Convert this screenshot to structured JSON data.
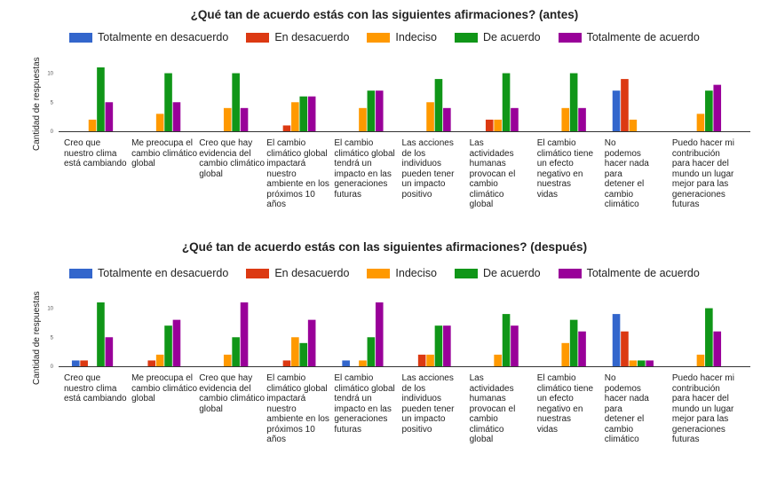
{
  "chart_data": [
    {
      "type": "bar",
      "title": "¿Qué tan de acuerdo estás con las siguientes afirmaciones? (antes)",
      "ylabel": "Cantidad de respuestas",
      "xlabel": "",
      "ylim": [
        0,
        11
      ],
      "yticks": [
        "0",
        "5",
        "10"
      ],
      "legend_position": "top",
      "categories": [
        [
          "Creo que",
          "nuestro clima",
          "está cambiando"
        ],
        [
          "Me preocupa el",
          "cambio climático",
          "global"
        ],
        [
          "Creo que hay",
          "evidencia del",
          "cambio climático",
          "global"
        ],
        [
          "El cambio",
          "climático global",
          "impactará",
          "nuestro",
          "ambiente en los",
          "próximos 10",
          "años"
        ],
        [
          "El cambio",
          "climático global",
          "tendrá un",
          "impacto en las",
          "generaciones",
          "futuras"
        ],
        [
          "Las acciones",
          "de los",
          "individuos",
          "pueden tener",
          "un impacto",
          "positivo"
        ],
        [
          "Las",
          "actividades",
          "humanas",
          "provocan el",
          "cambio",
          "climático",
          "global"
        ],
        [
          "El cambio",
          "climático tiene",
          "un efecto",
          "negativo en",
          "nuestras",
          "vidas"
        ],
        [
          "No",
          "podemos",
          "hacer nada",
          "para",
          "detener el",
          "cambio",
          "climático"
        ],
        [
          "Puedo hacer mi",
          "contribución",
          "para hacer del",
          "mundo un lugar",
          "mejor para las",
          "generaciones",
          "futuras"
        ]
      ],
      "series": [
        {
          "name": "Totalmente en desacuerdo",
          "color": "#3366cc",
          "values": [
            0,
            0,
            0,
            0,
            0,
            0,
            0,
            0,
            7,
            0
          ]
        },
        {
          "name": "En desacuerdo",
          "color": "#dc3912",
          "values": [
            0,
            0,
            0,
            1,
            0,
            0,
            2,
            0,
            9,
            0
          ]
        },
        {
          "name": "Indeciso",
          "color": "#ff9900",
          "values": [
            2,
            3,
            4,
            5,
            4,
            5,
            2,
            4,
            2,
            3
          ]
        },
        {
          "name": "De acuerdo",
          "color": "#109618",
          "values": [
            11,
            10,
            10,
            6,
            7,
            9,
            10,
            10,
            0,
            7
          ]
        },
        {
          "name": "Totalmente de acuerdo",
          "color": "#990099",
          "values": [
            5,
            5,
            4,
            6,
            7,
            4,
            4,
            4,
            0,
            8
          ]
        }
      ]
    },
    {
      "type": "bar",
      "title": "¿Qué tan de acuerdo estás con las siguientes afirmaciones? (después)",
      "ylabel": "Cantidad de respuestas",
      "xlabel": "",
      "ylim": [
        0,
        11
      ],
      "yticks": [
        "0",
        "5",
        "10"
      ],
      "legend_position": "top",
      "categories": [
        [
          "Creo que",
          "nuestro clima",
          "está cambiando"
        ],
        [
          "Me preocupa el",
          "cambio climático",
          "global"
        ],
        [
          "Creo que hay",
          "evidencia del",
          "cambio climático",
          "global"
        ],
        [
          "El cambio",
          "climático global",
          "impactará",
          "nuestro",
          "ambiente en los",
          "próximos 10",
          "años"
        ],
        [
          "El cambio",
          "climático global",
          "tendrá un",
          "impacto en las",
          "generaciones",
          "futuras"
        ],
        [
          "Las acciones",
          "de los",
          "individuos",
          "pueden tener",
          "un impacto",
          "positivo"
        ],
        [
          "Las",
          "actividades",
          "humanas",
          "provocan el",
          "cambio",
          "climático",
          "global"
        ],
        [
          "El cambio",
          "climático tiene",
          "un efecto",
          "negativo en",
          "nuestras",
          "vidas"
        ],
        [
          "No",
          "podemos",
          "hacer nada",
          "para",
          "detener el",
          "cambio",
          "climático"
        ],
        [
          "Puedo hacer mi",
          "contribución",
          "para hacer del",
          "mundo un lugar",
          "mejor para las",
          "generaciones",
          "futuras"
        ]
      ],
      "series": [
        {
          "name": "Totalmente en desacuerdo",
          "color": "#3366cc",
          "values": [
            1,
            0,
            0,
            0,
            1,
            0,
            0,
            0,
            9,
            0
          ]
        },
        {
          "name": "En desacuerdo",
          "color": "#dc3912",
          "values": [
            1,
            1,
            0,
            1,
            0,
            2,
            0,
            0,
            6,
            0
          ]
        },
        {
          "name": "Indeciso",
          "color": "#ff9900",
          "values": [
            0,
            2,
            2,
            5,
            1,
            2,
            2,
            4,
            1,
            2
          ]
        },
        {
          "name": "De acuerdo",
          "color": "#109618",
          "values": [
            11,
            7,
            5,
            4,
            5,
            7,
            9,
            8,
            1,
            10
          ]
        },
        {
          "name": "Totalmente de acuerdo",
          "color": "#990099",
          "values": [
            5,
            8,
            11,
            8,
            11,
            7,
            7,
            6,
            1,
            6
          ]
        }
      ]
    }
  ]
}
